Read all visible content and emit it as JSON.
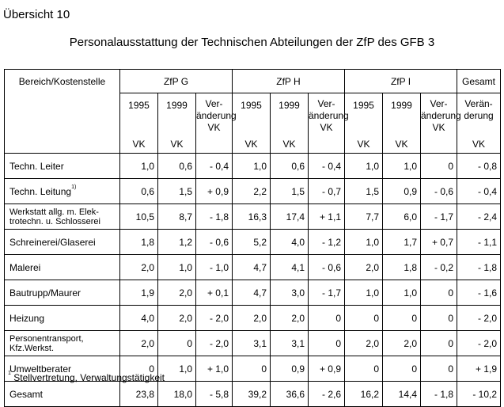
{
  "doc": {
    "label": "Übersicht 10",
    "title": "Personalausstattung der Technischen Abteilungen der ZfP des GFB 3",
    "footnote_mark": "1",
    "footnote_text": "Stellvertretung, Verwaltungstätigkeit"
  },
  "table": {
    "col_head": "Bereich/Kostenstelle",
    "groups": [
      "ZfP G",
      "ZfP H",
      "ZfP I",
      "Gesamt"
    ],
    "year_1": "1995",
    "year_2": "1999",
    "change_lines": [
      "Ver-",
      "änderung",
      "VK"
    ],
    "unit": "VK",
    "gesamt_change_lines": [
      "Verän-",
      "derung"
    ],
    "rows": [
      {
        "name": "Techn. Leiter",
        "name2": "",
        "sup": "",
        "v": [
          "1,0",
          "0,6",
          "- 0,4",
          "1,0",
          "0,6",
          "- 0,4",
          "1,0",
          "1,0",
          "0",
          "- 0,8"
        ]
      },
      {
        "name": "Techn. Leitung",
        "name2": "",
        "sup": "1)",
        "v": [
          "0,6",
          "1,5",
          "+ 0,9",
          "2,2",
          "1,5",
          "- 0,7",
          "1,5",
          "0,9",
          "- 0,6",
          "- 0,4"
        ]
      },
      {
        "name": "Werkstatt allg. m. Elek-",
        "name2": "trotechn. u. Schlosserei",
        "sup": "",
        "v": [
          "10,5",
          "8,7",
          "- 1,8",
          "16,3",
          "17,4",
          "+ 1,1",
          "7,7",
          "6,0",
          "- 1,7",
          "- 2,4"
        ]
      },
      {
        "name": "Schreinerei/Glaserei",
        "name2": "",
        "sup": "",
        "v": [
          "1,8",
          "1,2",
          "- 0,6",
          "5,2",
          "4,0",
          "- 1,2",
          "1,0",
          "1,7",
          "+ 0,7",
          "- 1,1"
        ]
      },
      {
        "name": "Malerei",
        "name2": "",
        "sup": "",
        "v": [
          "2,0",
          "1,0",
          "- 1,0",
          "4,7",
          "4,1",
          "- 0,6",
          "2,0",
          "1,8",
          "- 0,2",
          "- 1,8"
        ]
      },
      {
        "name": "Bautrupp/Maurer",
        "name2": "",
        "sup": "",
        "v": [
          "1,9",
          "2,0",
          "+ 0,1",
          "4,7",
          "3,0",
          "- 1,7",
          "1,0",
          "1,0",
          "0",
          "- 1,6"
        ]
      },
      {
        "name": "Heizung",
        "name2": "",
        "sup": "",
        "v": [
          "4,0",
          "2,0",
          "- 2,0",
          "2,0",
          "2,0",
          "0",
          "0",
          "0",
          "0",
          "- 2,0"
        ]
      },
      {
        "name": "Personentransport,",
        "name2": "Kfz.Werkst.",
        "sup": "",
        "v": [
          "2,0",
          "0",
          "- 2,0",
          "3,1",
          "3,1",
          "0",
          "2,0",
          "2,0",
          "0",
          "- 2,0"
        ]
      },
      {
        "name": "Umweltberater",
        "name2": "",
        "sup": "",
        "v": [
          "0",
          "1,0",
          "+ 1,0",
          "0",
          "0,9",
          "+ 0,9",
          "0",
          "0",
          "0",
          "+ 1,9"
        ]
      },
      {
        "name": "Gesamt",
        "name2": "",
        "sup": "",
        "v": [
          "23,8",
          "18,0",
          "- 5,8",
          "39,2",
          "36,6",
          "- 2,6",
          "16,2",
          "14,4",
          "- 1,8",
          "- 10,2"
        ]
      }
    ]
  }
}
